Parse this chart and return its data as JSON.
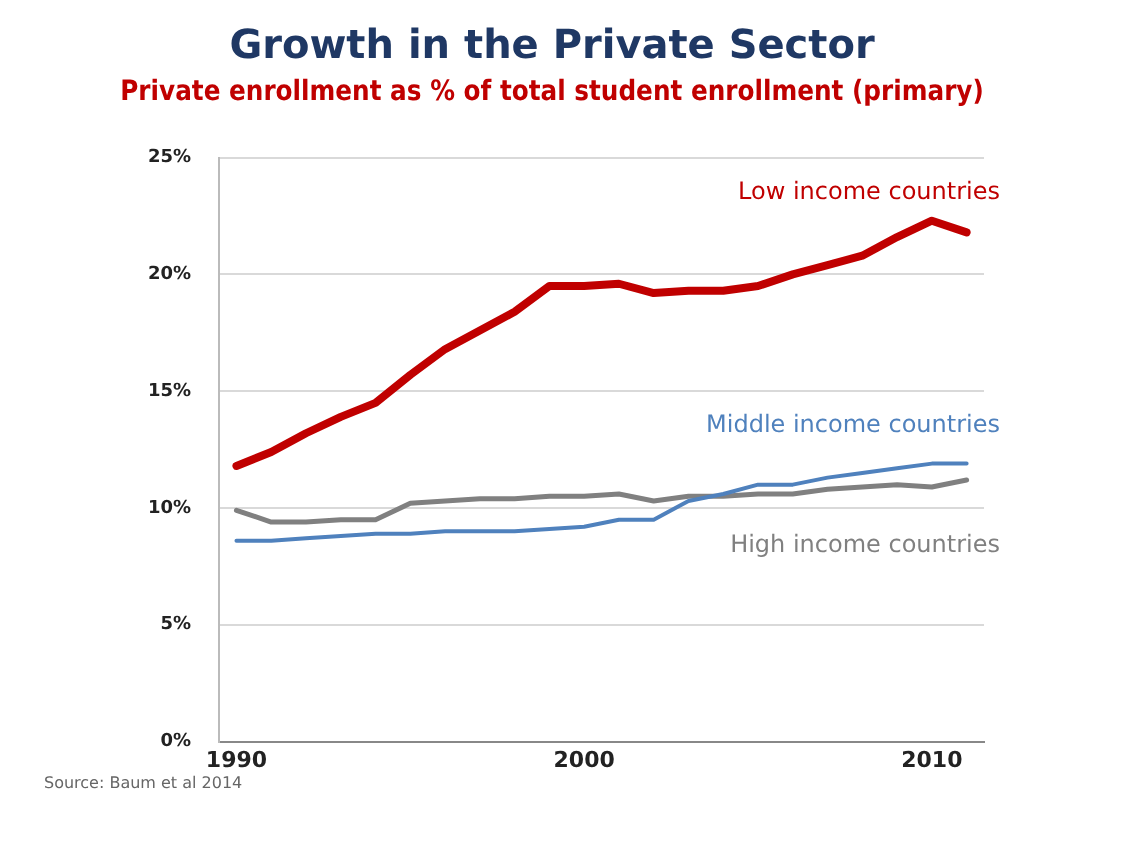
{
  "chart_data": {
    "type": "line",
    "title": "Growth in the Private Sector",
    "subtitle": "Private enrollment as % of total student enrollment (primary)",
    "x": [
      1990,
      1991,
      1992,
      1993,
      1994,
      1995,
      1996,
      1997,
      1998,
      1999,
      2000,
      2001,
      2002,
      2003,
      2004,
      2005,
      2006,
      2007,
      2008,
      2009,
      2010,
      2011
    ],
    "series": [
      {
        "name": "Low income countries",
        "color": "#c00000",
        "values": [
          11.8,
          12.4,
          13.2,
          13.9,
          14.5,
          15.7,
          16.8,
          17.6,
          18.4,
          19.5,
          19.5,
          19.6,
          19.2,
          19.3,
          19.3,
          19.5,
          20.0,
          20.4,
          20.8,
          21.6,
          22.3,
          21.8
        ]
      },
      {
        "name": "Middle income countries",
        "color": "#4f81bd",
        "values": [
          8.6,
          8.6,
          8.7,
          8.8,
          8.9,
          8.9,
          9.0,
          9.0,
          9.0,
          9.1,
          9.2,
          9.5,
          9.5,
          10.3,
          10.6,
          11.0,
          11.0,
          11.3,
          11.5,
          11.7,
          11.9,
          11.9
        ]
      },
      {
        "name": "High income countries",
        "color": "#808080",
        "values": [
          9.9,
          9.4,
          9.4,
          9.5,
          9.5,
          10.2,
          10.3,
          10.4,
          10.4,
          10.5,
          10.5,
          10.6,
          10.3,
          10.5,
          10.5,
          10.6,
          10.6,
          10.8,
          10.9,
          11.0,
          10.9,
          11.2
        ]
      }
    ],
    "xlim": [
      1989.5,
      2011.5
    ],
    "xticks": [
      1990,
      2000,
      2010
    ],
    "ylim": [
      0,
      25
    ],
    "yticks": [
      {
        "value": 0,
        "label": "0%"
      },
      {
        "value": 5,
        "label": "5%"
      },
      {
        "value": 10,
        "label": "10%"
      },
      {
        "value": 15,
        "label": "15%"
      },
      {
        "value": 20,
        "label": "20%"
      },
      {
        "value": 25,
        "label": "25%"
      }
    ],
    "grid": "y",
    "legend": false,
    "marker": "none",
    "line_style": "solid",
    "annotations": [
      "Source: Baum et al 2014"
    ]
  }
}
